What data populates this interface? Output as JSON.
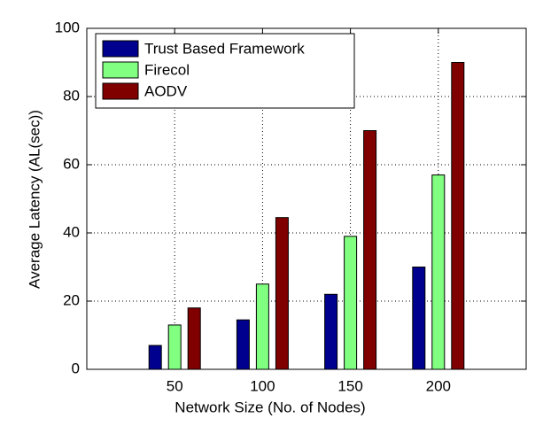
{
  "chart_data": {
    "type": "bar",
    "x_label": "Network Size (No. of Nodes)",
    "y_label": "Average Latency (AL(sec))",
    "categories": [
      "50",
      "100",
      "150",
      "200"
    ],
    "series": [
      {
        "name": "Trust Based Framework",
        "color": "#00008f",
        "values": [
          7,
          14.5,
          22,
          30
        ]
      },
      {
        "name": "Firecol",
        "color": "#80ff80",
        "values": [
          13,
          25,
          39,
          57
        ]
      },
      {
        "name": "AODV",
        "color": "#800000",
        "values": [
          18,
          44.5,
          70,
          90
        ]
      }
    ],
    "ylim": [
      0,
      100
    ],
    "yticks": [
      0,
      20,
      40,
      60,
      80,
      100
    ],
    "grid": true,
    "legend": "upper left"
  }
}
